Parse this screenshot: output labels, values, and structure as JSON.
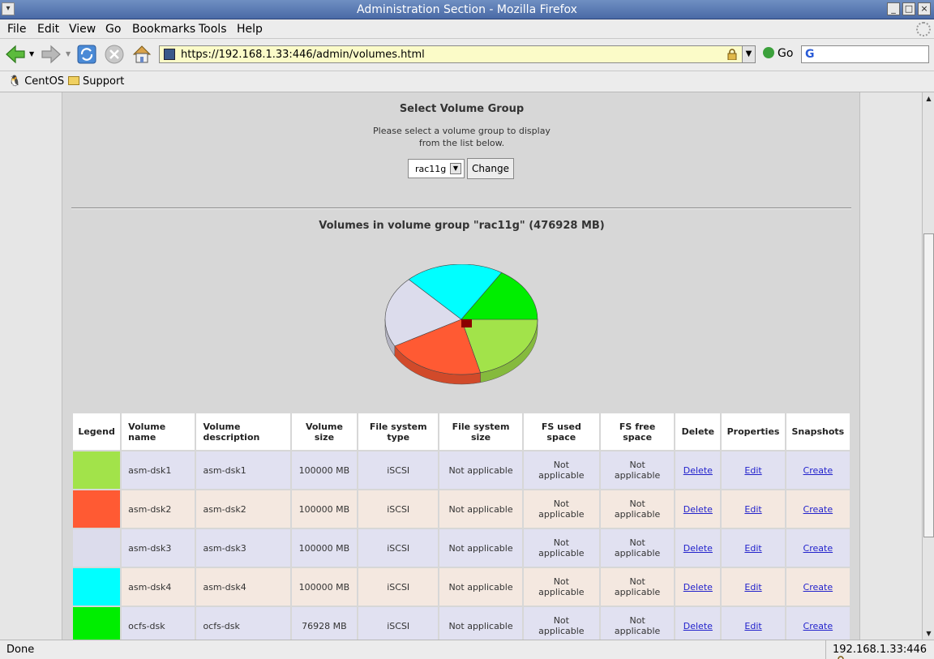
{
  "window": {
    "title": "Administration Section - Mozilla Firefox",
    "controls": [
      "_",
      "□",
      "×"
    ]
  },
  "menu": [
    "File",
    "Edit",
    "View",
    "Go",
    "Bookmarks",
    "Tools",
    "Help"
  ],
  "nav": {
    "url": "https://192.168.1.33:446/admin/volumes.html",
    "go_label": "Go",
    "icons": [
      "back-icon",
      "forward-icon",
      "reload-icon",
      "stop-icon",
      "home-icon"
    ]
  },
  "bookmarks": [
    "CentOS",
    "Support"
  ],
  "page": {
    "select_title": "Select Volume Group",
    "select_help_1": "Please select a volume group to display",
    "select_help_2": "from the list below.",
    "vg_selected": "rac11g",
    "change_label": "Change",
    "volumes_title": "Volumes in volume group \"rac11g\" (476928 MB)"
  },
  "table": {
    "headers": [
      "Legend",
      "Volume name",
      "Volume description",
      "Volume size",
      "File system type",
      "File system size",
      "FS used space",
      "FS free space",
      "Delete",
      "Properties",
      "Snapshots"
    ],
    "rows": [
      {
        "color": "#a2e34a",
        "name": "asm-dsk1",
        "desc": "asm-dsk1",
        "size": "100000 MB",
        "fstype": "iSCSI",
        "fssize": "Not applicable",
        "used": "Not applicable",
        "free": "Not applicable",
        "del": "Delete",
        "prop": "Edit",
        "snap": "Create"
      },
      {
        "color": "#ff5a33",
        "name": "asm-dsk2",
        "desc": "asm-dsk2",
        "size": "100000 MB",
        "fstype": "iSCSI",
        "fssize": "Not applicable",
        "used": "Not applicable",
        "free": "Not applicable",
        "del": "Delete",
        "prop": "Edit",
        "snap": "Create"
      },
      {
        "color": "#dcdcec",
        "name": "asm-dsk3",
        "desc": "asm-dsk3",
        "size": "100000 MB",
        "fstype": "iSCSI",
        "fssize": "Not applicable",
        "used": "Not applicable",
        "free": "Not applicable",
        "del": "Delete",
        "prop": "Edit",
        "snap": "Create"
      },
      {
        "color": "#00ffff",
        "name": "asm-dsk4",
        "desc": "asm-dsk4",
        "size": "100000 MB",
        "fstype": "iSCSI",
        "fssize": "Not applicable",
        "used": "Not applicable",
        "free": "Not applicable",
        "del": "Delete",
        "prop": "Edit",
        "snap": "Create"
      },
      {
        "color": "#00ee00",
        "name": "ocfs-dsk",
        "desc": "ocfs-dsk",
        "size": "76928 MB",
        "fstype": "iSCSI",
        "fssize": "Not applicable",
        "used": "Not applicable",
        "free": "Not applicable",
        "del": "Delete",
        "prop": "Edit",
        "snap": "Create"
      }
    ]
  },
  "chart_data": {
    "type": "pie",
    "title": "",
    "labels": [
      "asm-dsk1",
      "asm-dsk2",
      "asm-dsk3",
      "asm-dsk4",
      "ocfs-dsk"
    ],
    "values": [
      100000,
      100000,
      100000,
      100000,
      76928
    ],
    "colors": [
      "#a2e34a",
      "#ff5a33",
      "#dcdcec",
      "#00ffff",
      "#00ee00"
    ]
  },
  "status": {
    "text": "Done",
    "host": "192.168.1.33:446"
  }
}
